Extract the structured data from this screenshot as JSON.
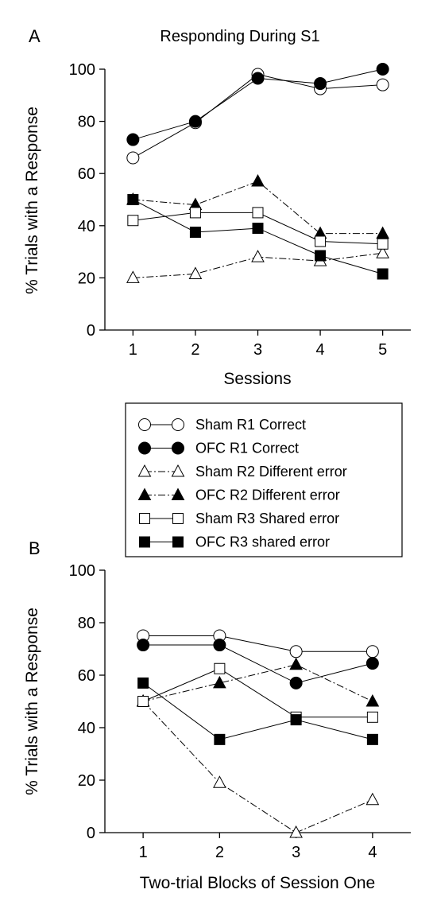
{
  "figure": {
    "legend": {
      "entries": [
        {
          "label": "Sham R1 Correct",
          "marker": "circle",
          "fill": "#ffffff",
          "dash": false
        },
        {
          "label": "OFC R1 Correct",
          "marker": "circle",
          "fill": "#000000",
          "dash": false
        },
        {
          "label": "Sham R2 Different error",
          "marker": "triangle",
          "fill": "#ffffff",
          "dash": true
        },
        {
          "label": "OFC R2 Different error",
          "marker": "triangle",
          "fill": "#000000",
          "dash": true
        },
        {
          "label": "Sham R3 Shared error",
          "marker": "square",
          "fill": "#ffffff",
          "dash": false
        },
        {
          "label": "OFC R3 shared error",
          "marker": "square",
          "fill": "#000000",
          "dash": false
        }
      ]
    }
  },
  "chart_data": [
    {
      "type": "line",
      "panel_label": "A",
      "title": "Responding During S1",
      "xlabel": "Sessions",
      "ylabel": "% Trials with a Response",
      "x": [
        1,
        2,
        3,
        4,
        5
      ],
      "xlim": [
        0.55,
        5.45
      ],
      "ylim": [
        0,
        100
      ],
      "yticks": [
        0,
        20,
        40,
        60,
        80,
        100
      ],
      "series": [
        {
          "name": "Sham R1 Correct",
          "marker": "circle",
          "fill": "#ffffff",
          "dash": false,
          "values": [
            66,
            79.5,
            98,
            92.5,
            94
          ]
        },
        {
          "name": "OFC R1 Correct",
          "marker": "circle",
          "fill": "#000000",
          "dash": false,
          "values": [
            73,
            80,
            96.5,
            94.5,
            100
          ]
        },
        {
          "name": "Sham R2 Different error",
          "marker": "triangle",
          "fill": "#ffffff",
          "dash": true,
          "values": [
            20,
            21.5,
            28,
            26.5,
            29.5
          ]
        },
        {
          "name": "OFC R2 Different error",
          "marker": "triangle",
          "fill": "#000000",
          "dash": true,
          "values": [
            50,
            48,
            57,
            37,
            37
          ]
        },
        {
          "name": "Sham R3 Shared error",
          "marker": "square",
          "fill": "#ffffff",
          "dash": false,
          "values": [
            42,
            45,
            45,
            34,
            33
          ]
        },
        {
          "name": "OFC R3 shared error",
          "marker": "square",
          "fill": "#000000",
          "dash": false,
          "values": [
            50,
            37.5,
            39,
            28.5,
            21.5
          ]
        }
      ]
    },
    {
      "type": "line",
      "panel_label": "B",
      "title": "",
      "xlabel": "Two-trial Blocks of Session One",
      "ylabel": "% Trials with a Response",
      "x": [
        1,
        2,
        3,
        4
      ],
      "xlim": [
        0.5,
        4.5
      ],
      "ylim": [
        0,
        100
      ],
      "yticks": [
        0,
        20,
        40,
        60,
        80,
        100
      ],
      "series": [
        {
          "name": "Sham R1 Correct",
          "marker": "circle",
          "fill": "#ffffff",
          "dash": false,
          "values": [
            75,
            75,
            69,
            69
          ]
        },
        {
          "name": "OFC R1 Correct",
          "marker": "circle",
          "fill": "#000000",
          "dash": false,
          "values": [
            71.5,
            71.5,
            57,
            64.5
          ]
        },
        {
          "name": "Sham R2 Different error",
          "marker": "triangle",
          "fill": "#ffffff",
          "dash": true,
          "values": [
            50,
            19,
            0,
            12.5
          ]
        },
        {
          "name": "OFC R2 Different error",
          "marker": "triangle",
          "fill": "#000000",
          "dash": true,
          "values": [
            50,
            57,
            64,
            50
          ]
        },
        {
          "name": "Sham R3 Shared error",
          "marker": "square",
          "fill": "#ffffff",
          "dash": false,
          "values": [
            50,
            62.5,
            44,
            44
          ]
        },
        {
          "name": "OFC R3 shared error",
          "marker": "square",
          "fill": "#000000",
          "dash": false,
          "values": [
            57,
            35.5,
            43,
            35.5
          ]
        }
      ]
    }
  ]
}
